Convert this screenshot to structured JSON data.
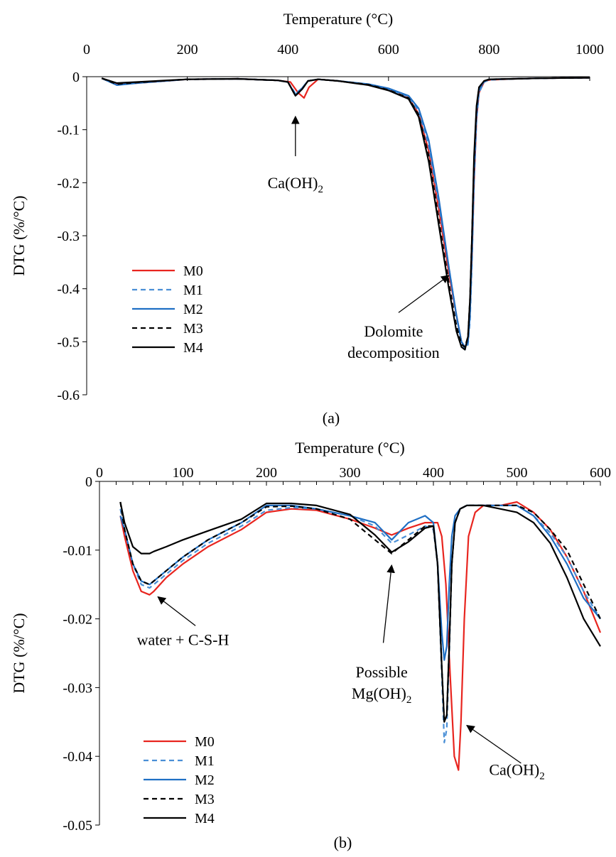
{
  "chart_data": [
    {
      "type": "line",
      "panel_label": "(a)",
      "xlabel": "Temperature (°C)",
      "ylabel": "DTG (%/°C)",
      "xlim": [
        0,
        1000
      ],
      "ylim": [
        -0.6,
        0
      ],
      "x_ticks": [
        0,
        200,
        400,
        600,
        800,
        1000
      ],
      "y_ticks": [
        0,
        -0.1,
        -0.2,
        -0.3,
        -0.4,
        -0.5,
        -0.6
      ],
      "x_tick_labels": [
        "0",
        "200",
        "400",
        "600",
        "800",
        "1000"
      ],
      "y_tick_labels": [
        "0",
        "-0.1",
        "-0.2",
        "-0.3",
        "-0.4",
        "-0.5",
        "-0.6"
      ],
      "x_axis_position": "top",
      "grid": false,
      "legend_position": "lower-left",
      "series": [
        {
          "name": "M0",
          "color": "#e8251f",
          "dash": "solid",
          "x": [
            30,
            60,
            100,
            200,
            300,
            380,
            405,
            420,
            432,
            442,
            460,
            500,
            560,
            600,
            640,
            660,
            680,
            700,
            720,
            735,
            745,
            752,
            758,
            762,
            766,
            770,
            775,
            780,
            790,
            800,
            850,
            900,
            1000
          ],
          "y": [
            -0.003,
            -0.015,
            -0.012,
            -0.005,
            -0.004,
            -0.007,
            -0.01,
            -0.03,
            -0.04,
            -0.02,
            -0.005,
            -0.008,
            -0.015,
            -0.025,
            -0.04,
            -0.07,
            -0.14,
            -0.25,
            -0.37,
            -0.45,
            -0.5,
            -0.51,
            -0.5,
            -0.44,
            -0.34,
            -0.2,
            -0.08,
            -0.03,
            -0.01,
            -0.006,
            -0.004,
            -0.003,
            -0.002
          ]
        },
        {
          "name": "M1",
          "color": "#4a8fd6",
          "dash": "dashed",
          "x": [
            30,
            60,
            100,
            200,
            300,
            380,
            400,
            415,
            428,
            440,
            460,
            500,
            560,
            600,
            640,
            660,
            680,
            700,
            720,
            735,
            745,
            752,
            758,
            762,
            766,
            770,
            775,
            780,
            790,
            800,
            850,
            900,
            1000
          ],
          "y": [
            -0.003,
            -0.015,
            -0.011,
            -0.005,
            -0.004,
            -0.007,
            -0.01,
            -0.032,
            -0.022,
            -0.008,
            -0.005,
            -0.008,
            -0.015,
            -0.024,
            -0.038,
            -0.065,
            -0.13,
            -0.24,
            -0.36,
            -0.45,
            -0.5,
            -0.515,
            -0.505,
            -0.46,
            -0.35,
            -0.2,
            -0.08,
            -0.03,
            -0.01,
            -0.006,
            -0.004,
            -0.003,
            -0.002
          ]
        },
        {
          "name": "M2",
          "color": "#1f6fc4",
          "dash": "solid",
          "x": [
            30,
            60,
            100,
            200,
            300,
            380,
            400,
            415,
            428,
            440,
            460,
            500,
            560,
            600,
            640,
            660,
            680,
            700,
            720,
            735,
            745,
            752,
            758,
            762,
            766,
            770,
            775,
            780,
            790,
            800,
            850,
            900,
            1000
          ],
          "y": [
            -0.003,
            -0.016,
            -0.012,
            -0.005,
            -0.004,
            -0.007,
            -0.01,
            -0.034,
            -0.022,
            -0.008,
            -0.005,
            -0.008,
            -0.014,
            -0.022,
            -0.036,
            -0.06,
            -0.12,
            -0.23,
            -0.36,
            -0.45,
            -0.5,
            -0.51,
            -0.5,
            -0.45,
            -0.33,
            -0.18,
            -0.07,
            -0.025,
            -0.009,
            -0.005,
            -0.004,
            -0.003,
            -0.002
          ]
        },
        {
          "name": "M3",
          "color": "#000000",
          "dash": "dashed",
          "x": [
            30,
            60,
            100,
            200,
            300,
            380,
            400,
            415,
            428,
            440,
            460,
            500,
            560,
            600,
            640,
            660,
            680,
            700,
            720,
            735,
            745,
            752,
            758,
            762,
            766,
            770,
            775,
            780,
            790,
            800,
            850,
            900,
            1000
          ],
          "y": [
            -0.003,
            -0.014,
            -0.011,
            -0.005,
            -0.004,
            -0.007,
            -0.01,
            -0.036,
            -0.024,
            -0.008,
            -0.005,
            -0.008,
            -0.015,
            -0.025,
            -0.04,
            -0.072,
            -0.15,
            -0.27,
            -0.39,
            -0.47,
            -0.505,
            -0.51,
            -0.49,
            -0.42,
            -0.3,
            -0.16,
            -0.06,
            -0.02,
            -0.008,
            -0.005,
            -0.004,
            -0.003,
            -0.002
          ]
        },
        {
          "name": "M4",
          "color": "#000000",
          "dash": "solid",
          "x": [
            30,
            60,
            100,
            200,
            300,
            380,
            400,
            415,
            428,
            440,
            460,
            500,
            560,
            600,
            640,
            660,
            680,
            700,
            720,
            735,
            745,
            752,
            758,
            762,
            766,
            770,
            775,
            780,
            790,
            800,
            850,
            900,
            1000
          ],
          "y": [
            -0.003,
            -0.012,
            -0.01,
            -0.005,
            -0.004,
            -0.007,
            -0.01,
            -0.036,
            -0.024,
            -0.008,
            -0.005,
            -0.008,
            -0.016,
            -0.026,
            -0.042,
            -0.076,
            -0.16,
            -0.28,
            -0.4,
            -0.48,
            -0.51,
            -0.515,
            -0.49,
            -0.42,
            -0.3,
            -0.15,
            -0.055,
            -0.02,
            -0.008,
            -0.005,
            -0.004,
            -0.003,
            -0.002
          ]
        }
      ],
      "annotations": [
        {
          "text": "Ca(OH)₂",
          "lines": [
            "Ca(OH)",
            "2"
          ],
          "arrow_from": [
            415,
            -0.15
          ],
          "arrow_to": [
            415,
            -0.075
          ],
          "text_at": [
            415,
            -0.21
          ]
        },
        {
          "text": "Dolomite decomposition",
          "lines": [
            "Dolomite",
            "decomposition"
          ],
          "arrow_from": [
            620,
            -0.445
          ],
          "arrow_to": [
            720,
            -0.375
          ],
          "text_at": [
            610,
            -0.49
          ]
        }
      ]
    },
    {
      "type": "line",
      "panel_label": "(b)",
      "xlabel": "Temperature (°C)",
      "ylabel": "DTG (%/°C)",
      "xlim": [
        0,
        600
      ],
      "ylim": [
        -0.05,
        0
      ],
      "x_ticks": [
        0,
        100,
        200,
        300,
        400,
        500,
        600
      ],
      "y_ticks": [
        0,
        -0.01,
        -0.02,
        -0.03,
        -0.04,
        -0.05
      ],
      "x_tick_labels": [
        "0",
        "100",
        "200",
        "300",
        "400",
        "500",
        "600"
      ],
      "y_tick_labels": [
        "0",
        "-0.01",
        "-0.02",
        "-0.03",
        "-0.04",
        "-0.05"
      ],
      "x_axis_position": "top",
      "grid": false,
      "legend_position": "lower-left",
      "series": [
        {
          "name": "M0",
          "color": "#e8251f",
          "dash": "solid",
          "x": [
            25,
            30,
            40,
            50,
            60,
            65,
            80,
            100,
            130,
            170,
            200,
            230,
            260,
            300,
            330,
            350,
            370,
            390,
            405,
            410,
            415,
            420,
            425,
            430,
            433,
            437,
            442,
            450,
            460,
            480,
            500,
            520,
            540,
            560,
            580,
            600
          ],
          "y": [
            -0.005,
            -0.008,
            -0.013,
            -0.016,
            -0.0165,
            -0.016,
            -0.014,
            -0.012,
            -0.0095,
            -0.007,
            -0.0045,
            -0.004,
            -0.0042,
            -0.0055,
            -0.0068,
            -0.0078,
            -0.0068,
            -0.006,
            -0.006,
            -0.008,
            -0.015,
            -0.028,
            -0.04,
            -0.042,
            -0.035,
            -0.02,
            -0.008,
            -0.0045,
            -0.0035,
            -0.0035,
            -0.003,
            -0.0045,
            -0.007,
            -0.011,
            -0.016,
            -0.022
          ]
        },
        {
          "name": "M1",
          "color": "#4a8fd6",
          "dash": "dashed",
          "x": [
            25,
            30,
            40,
            50,
            60,
            65,
            80,
            100,
            130,
            170,
            200,
            230,
            260,
            300,
            330,
            350,
            370,
            390,
            400,
            405,
            410,
            413,
            416,
            419,
            422,
            426,
            432,
            440,
            460,
            480,
            500,
            520,
            540,
            560,
            580,
            600
          ],
          "y": [
            -0.004,
            -0.007,
            -0.012,
            -0.015,
            -0.0155,
            -0.015,
            -0.0135,
            -0.0115,
            -0.009,
            -0.0065,
            -0.0042,
            -0.0038,
            -0.004,
            -0.005,
            -0.0065,
            -0.009,
            -0.0078,
            -0.0065,
            -0.007,
            -0.012,
            -0.028,
            -0.038,
            -0.036,
            -0.025,
            -0.012,
            -0.006,
            -0.004,
            -0.0035,
            -0.0035,
            -0.0035,
            -0.0035,
            -0.005,
            -0.0075,
            -0.011,
            -0.016,
            -0.02
          ]
        },
        {
          "name": "M2",
          "color": "#1f6fc4",
          "dash": "solid",
          "x": [
            25,
            30,
            40,
            50,
            60,
            65,
            80,
            100,
            130,
            170,
            200,
            230,
            260,
            300,
            330,
            350,
            370,
            390,
            400,
            405,
            410,
            413,
            416,
            419,
            422,
            426,
            432,
            440,
            460,
            480,
            500,
            520,
            540,
            560,
            580,
            600
          ],
          "y": [
            -0.005,
            -0.007,
            -0.012,
            -0.0145,
            -0.015,
            -0.0145,
            -0.013,
            -0.011,
            -0.0085,
            -0.006,
            -0.0035,
            -0.0035,
            -0.004,
            -0.005,
            -0.006,
            -0.0085,
            -0.006,
            -0.005,
            -0.006,
            -0.012,
            -0.022,
            -0.026,
            -0.024,
            -0.015,
            -0.008,
            -0.005,
            -0.004,
            -0.0035,
            -0.0035,
            -0.0035,
            -0.0035,
            -0.005,
            -0.008,
            -0.012,
            -0.017,
            -0.02
          ]
        },
        {
          "name": "M3",
          "color": "#000000",
          "dash": "dashed",
          "x": [
            25,
            30,
            40,
            50,
            60,
            65,
            80,
            100,
            130,
            170,
            200,
            230,
            260,
            300,
            330,
            350,
            370,
            390,
            400,
            405,
            410,
            413,
            416,
            419,
            422,
            426,
            432,
            440,
            460,
            480,
            500,
            520,
            540,
            560,
            580,
            600
          ],
          "y": [
            -0.003,
            -0.007,
            -0.012,
            -0.0145,
            -0.015,
            -0.0145,
            -0.013,
            -0.011,
            -0.0085,
            -0.006,
            -0.0037,
            -0.0036,
            -0.004,
            -0.0055,
            -0.0085,
            -0.0105,
            -0.0085,
            -0.0065,
            -0.0065,
            -0.012,
            -0.027,
            -0.035,
            -0.034,
            -0.024,
            -0.012,
            -0.006,
            -0.004,
            -0.0035,
            -0.0035,
            -0.0035,
            -0.0035,
            -0.0045,
            -0.007,
            -0.01,
            -0.015,
            -0.02
          ]
        },
        {
          "name": "M4",
          "color": "#000000",
          "dash": "solid",
          "x": [
            25,
            30,
            40,
            50,
            60,
            65,
            80,
            100,
            130,
            170,
            200,
            230,
            260,
            300,
            330,
            350,
            370,
            390,
            400,
            405,
            410,
            413,
            416,
            419,
            422,
            426,
            432,
            440,
            460,
            480,
            500,
            520,
            540,
            560,
            580,
            600
          ],
          "y": [
            -0.003,
            -0.006,
            -0.0095,
            -0.0105,
            -0.0105,
            -0.0102,
            -0.0095,
            -0.0085,
            -0.0072,
            -0.0055,
            -0.0032,
            -0.0032,
            -0.0035,
            -0.0048,
            -0.0078,
            -0.0103,
            -0.0088,
            -0.0068,
            -0.0065,
            -0.012,
            -0.027,
            -0.035,
            -0.034,
            -0.024,
            -0.012,
            -0.006,
            -0.004,
            -0.0035,
            -0.0035,
            -0.004,
            -0.0045,
            -0.006,
            -0.009,
            -0.014,
            -0.02,
            -0.024
          ]
        }
      ],
      "annotations": [
        {
          "text": "water + C-S-H",
          "lines": [
            "water + C-S-H"
          ],
          "arrow_from": [
            115,
            -0.021
          ],
          "arrow_to": [
            70,
            -0.0168
          ],
          "text_at": [
            100,
            -0.0238
          ]
        },
        {
          "text": "Possible Mg(OH)₂",
          "lines": [
            "Possible",
            "Mg(OH)",
            "2"
          ],
          "arrow_from": [
            340,
            -0.0235
          ],
          "arrow_to": [
            350,
            -0.0122
          ],
          "text_at": [
            338,
            -0.0285
          ]
        },
        {
          "text": "Ca(OH)₂",
          "lines": [
            "Ca(OH)",
            "2"
          ],
          "arrow_from": [
            505,
            -0.041
          ],
          "arrow_to": [
            440,
            -0.0355
          ],
          "text_at": [
            500,
            -0.0427
          ]
        }
      ]
    }
  ]
}
